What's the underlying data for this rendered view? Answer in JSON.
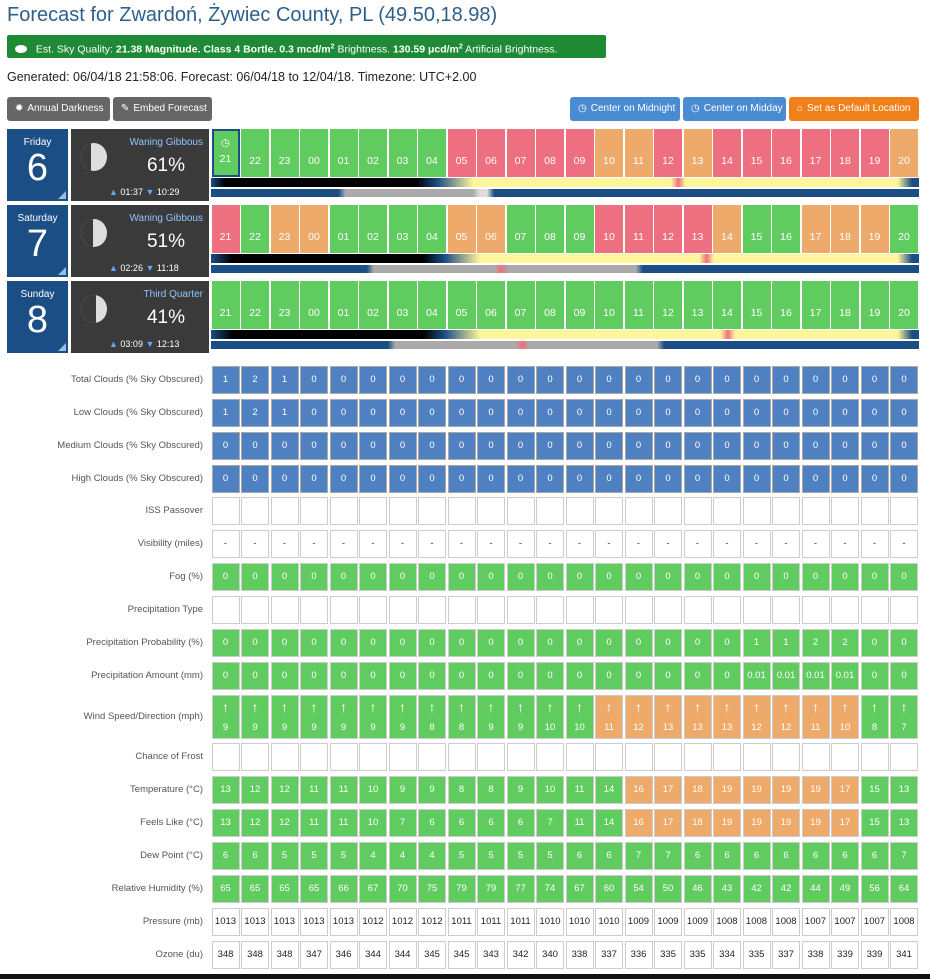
{
  "title": "Forecast for Zwardoń, Żywiec County, PL (49.50,18.98)",
  "sky_quality": {
    "prefix": "Est. Sky Quality:",
    "magnitude": "21.38 Magnitude.",
    "bortle": "Class 4 Bortle.",
    "brightness": "0.3 mcd/m",
    "brightness_suffix": "Brightness.",
    "artificial": "130.59 μcd/m",
    "artificial_suffix": "Artificial Brightness.",
    "sup": "2"
  },
  "generated": "Generated: 06/04/18 21:58:06. Forecast: 06/04/18 to 12/04/18. Timezone: UTC+2.00",
  "buttons": {
    "annual_darkness": "Annual Darkness",
    "embed_forecast": "Embed Forecast",
    "center_midnight": "Center on Midnight",
    "center_midday": "Center on Midday",
    "set_default": "Set as Default Location"
  },
  "colors": {
    "green": "#60cc60",
    "red": "#ee6f7f",
    "orange": "#eeaa6a",
    "blue": "#4f80c1",
    "day_blue": "#1c4e86"
  },
  "hours": [
    "21",
    "22",
    "23",
    "00",
    "01",
    "02",
    "03",
    "04",
    "05",
    "06",
    "07",
    "08",
    "09",
    "10",
    "11",
    "12",
    "13",
    "14",
    "15",
    "16",
    "17",
    "18",
    "19",
    "20"
  ],
  "days": [
    {
      "name": "Friday",
      "date": "6",
      "phase": "Waning Gibbous",
      "illumination": "61%",
      "rise": "01:37",
      "set": "10:29",
      "shade": 0.38,
      "hour_colors": [
        "g",
        "g",
        "g",
        "g",
        "g",
        "g",
        "g",
        "g",
        "r",
        "r",
        "r",
        "r",
        "r",
        "o",
        "o",
        "r",
        "o",
        "r",
        "r",
        "r",
        "r",
        "r",
        "r",
        "o"
      ]
    },
    {
      "name": "Saturday",
      "date": "7",
      "phase": "Waning Gibbous",
      "illumination": "51%",
      "rise": "02:26",
      "set": "11:18",
      "shade": 0.48,
      "hour_colors": [
        "r",
        "g",
        "o",
        "o",
        "g",
        "g",
        "g",
        "g",
        "o",
        "o",
        "g",
        "g",
        "g",
        "r",
        "r",
        "r",
        "r",
        "o",
        "g",
        "g",
        "o",
        "o",
        "o",
        "g"
      ]
    },
    {
      "name": "Sunday",
      "date": "8",
      "phase": "Third Quarter",
      "illumination": "41%",
      "rise": "03:09",
      "set": "12:13",
      "shade": 0.58,
      "hour_colors": [
        "g",
        "g",
        "g",
        "g",
        "g",
        "g",
        "g",
        "g",
        "g",
        "g",
        "g",
        "g",
        "g",
        "g",
        "g",
        "g",
        "g",
        "g",
        "g",
        "g",
        "g",
        "g",
        "g",
        "g"
      ]
    }
  ],
  "rows": [
    {
      "label": "Total Clouds (% Sky Obscured)",
      "type": "blue",
      "values": [
        "1",
        "2",
        "1",
        "0",
        "0",
        "0",
        "0",
        "0",
        "0",
        "0",
        "0",
        "0",
        "0",
        "0",
        "0",
        "0",
        "0",
        "0",
        "0",
        "0",
        "0",
        "0",
        "0",
        "0"
      ]
    },
    {
      "label": "Low Clouds (% Sky Obscured)",
      "type": "blue",
      "values": [
        "1",
        "2",
        "1",
        "0",
        "0",
        "0",
        "0",
        "0",
        "0",
        "0",
        "0",
        "0",
        "0",
        "0",
        "0",
        "0",
        "0",
        "0",
        "0",
        "0",
        "0",
        "0",
        "0",
        "0"
      ]
    },
    {
      "label": "Medium Clouds (% Sky Obscured)",
      "type": "blue",
      "values": [
        "0",
        "0",
        "0",
        "0",
        "0",
        "0",
        "0",
        "0",
        "0",
        "0",
        "0",
        "0",
        "0",
        "0",
        "0",
        "0",
        "0",
        "0",
        "0",
        "0",
        "0",
        "0",
        "0",
        "0"
      ]
    },
    {
      "label": "High Clouds (% Sky Obscured)",
      "type": "blue",
      "values": [
        "0",
        "0",
        "0",
        "0",
        "0",
        "0",
        "0",
        "0",
        "0",
        "0",
        "0",
        "0",
        "0",
        "0",
        "0",
        "0",
        "0",
        "0",
        "0",
        "0",
        "0",
        "0",
        "0",
        "0"
      ]
    },
    {
      "label": "ISS Passover",
      "type": "empty",
      "values": [
        "",
        "",
        "",
        "",
        "",
        "",
        "",
        "",
        "",
        "",
        "",
        "",
        "",
        "",
        "",
        "",
        "",
        "",
        "",
        "",
        "",
        "",
        "",
        ""
      ]
    },
    {
      "label": "Visibility (miles)",
      "type": "empty",
      "values": [
        "-",
        "-",
        "-",
        "-",
        "-",
        "-",
        "-",
        "-",
        "-",
        "-",
        "-",
        "-",
        "-",
        "-",
        "-",
        "-",
        "-",
        "-",
        "-",
        "-",
        "-",
        "-",
        "-",
        "-"
      ]
    },
    {
      "label": "Fog (%)",
      "type": "green",
      "values": [
        "0",
        "0",
        "0",
        "0",
        "0",
        "0",
        "0",
        "0",
        "0",
        "0",
        "0",
        "0",
        "0",
        "0",
        "0",
        "0",
        "0",
        "0",
        "0",
        "0",
        "0",
        "0",
        "0",
        "0"
      ]
    },
    {
      "label": "Precipitation Type",
      "type": "empty",
      "values": [
        "",
        "",
        "",
        "",
        "",
        "",
        "",
        "",
        "",
        "",
        "",
        "",
        "",
        "",
        "",
        "",
        "",
        "",
        "",
        "",
        "",
        "",
        "",
        ""
      ]
    },
    {
      "label": "Precipitation Probability (%)",
      "type": "green",
      "values": [
        "0",
        "0",
        "0",
        "0",
        "0",
        "0",
        "0",
        "0",
        "0",
        "0",
        "0",
        "0",
        "0",
        "0",
        "0",
        "0",
        "0",
        "0",
        "1",
        "1",
        "2",
        "2",
        "0",
        "0"
      ]
    },
    {
      "label": "Precipitation Amount (mm)",
      "type": "green",
      "values": [
        "0",
        "0",
        "0",
        "0",
        "0",
        "0",
        "0",
        "0",
        "0",
        "0",
        "0",
        "0",
        "0",
        "0",
        "0",
        "0",
        "0",
        "0",
        "0.01",
        "0.01",
        "0.01",
        "0.01",
        "0",
        "0"
      ]
    },
    {
      "label": "Wind Speed/Direction (mph)",
      "type": "wind",
      "values": [
        "9",
        "9",
        "9",
        "9",
        "9",
        "9",
        "9",
        "8",
        "8",
        "9",
        "9",
        "10",
        "10",
        "11",
        "12",
        "13",
        "13",
        "13",
        "12",
        "12",
        "11",
        "10",
        "8",
        "7"
      ],
      "colors": [
        "g",
        "g",
        "g",
        "g",
        "g",
        "g",
        "g",
        "g",
        "g",
        "g",
        "g",
        "g",
        "g",
        "o",
        "o",
        "o",
        "o",
        "o",
        "o",
        "o",
        "o",
        "o",
        "g",
        "g"
      ]
    },
    {
      "label": "Chance of Frost",
      "type": "empty",
      "values": [
        "",
        "",
        "",
        "",
        "",
        "",
        "",
        "",
        "",
        "",
        "",
        "",
        "",
        "",
        "",
        "",
        "",
        "",
        "",
        "",
        "",
        "",
        "",
        ""
      ]
    },
    {
      "label": "Temperature (°C)",
      "type": "mixed",
      "values": [
        "13",
        "12",
        "12",
        "11",
        "11",
        "10",
        "9",
        "9",
        "8",
        "8",
        "9",
        "10",
        "11",
        "14",
        "16",
        "17",
        "18",
        "19",
        "19",
        "19",
        "19",
        "17",
        "15",
        "13"
      ],
      "colors": [
        "g",
        "g",
        "g",
        "g",
        "g",
        "g",
        "g",
        "g",
        "g",
        "g",
        "g",
        "g",
        "g",
        "g",
        "o",
        "o",
        "o",
        "o",
        "o",
        "o",
        "o",
        "o",
        "g",
        "g"
      ]
    },
    {
      "label": "Feels Like (°C)",
      "type": "mixed",
      "values": [
        "13",
        "12",
        "12",
        "11",
        "11",
        "10",
        "7",
        "6",
        "6",
        "6",
        "6",
        "7",
        "11",
        "14",
        "16",
        "17",
        "18",
        "19",
        "19",
        "19",
        "19",
        "17",
        "15",
        "13"
      ],
      "colors": [
        "g",
        "g",
        "g",
        "g",
        "g",
        "g",
        "g",
        "g",
        "g",
        "g",
        "g",
        "g",
        "g",
        "g",
        "o",
        "o",
        "o",
        "o",
        "o",
        "o",
        "o",
        "o",
        "g",
        "g"
      ]
    },
    {
      "label": "Dew Point (°C)",
      "type": "green",
      "values": [
        "6",
        "6",
        "5",
        "5",
        "5",
        "4",
        "4",
        "4",
        "5",
        "5",
        "5",
        "5",
        "6",
        "6",
        "7",
        "7",
        "6",
        "6",
        "6",
        "6",
        "6",
        "6",
        "6",
        "7"
      ]
    },
    {
      "label": "Relative Humidity (%)",
      "type": "green",
      "values": [
        "65",
        "65",
        "65",
        "65",
        "66",
        "67",
        "70",
        "75",
        "79",
        "79",
        "77",
        "74",
        "67",
        "60",
        "54",
        "50",
        "46",
        "43",
        "42",
        "42",
        "44",
        "49",
        "56",
        "64"
      ]
    },
    {
      "label": "Pressure (mb)",
      "type": "white",
      "values": [
        "1013",
        "1013",
        "1013",
        "1013",
        "1013",
        "1012",
        "1012",
        "1012",
        "1011",
        "1011",
        "1011",
        "1010",
        "1010",
        "1010",
        "1009",
        "1009",
        "1009",
        "1008",
        "1008",
        "1008",
        "1007",
        "1007",
        "1007",
        "1008"
      ]
    },
    {
      "label": "Ozone (du)",
      "type": "white",
      "values": [
        "348",
        "348",
        "348",
        "347",
        "346",
        "344",
        "344",
        "345",
        "345",
        "343",
        "342",
        "340",
        "338",
        "337",
        "336",
        "335",
        "335",
        "334",
        "335",
        "337",
        "338",
        "339",
        "339",
        "341"
      ]
    }
  ]
}
